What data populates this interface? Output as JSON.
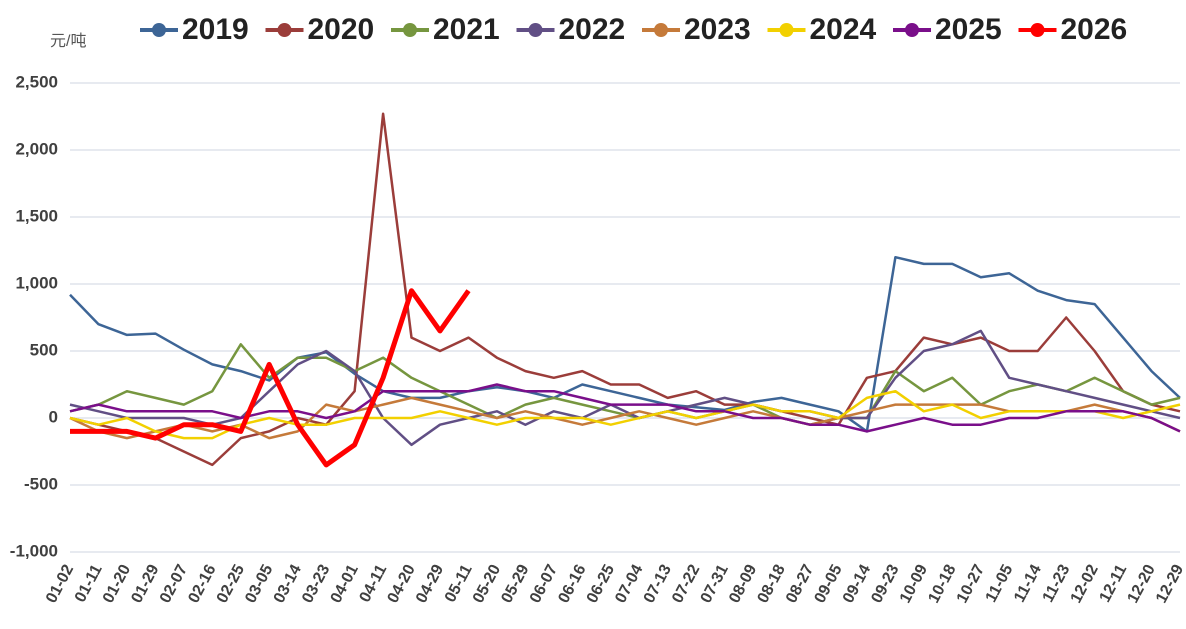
{
  "chart_data": {
    "type": "line",
    "unit": "元/吨",
    "categories": [
      "01-02",
      "01-11",
      "01-20",
      "01-29",
      "02-07",
      "02-16",
      "02-25",
      "03-05",
      "03-14",
      "03-23",
      "04-01",
      "04-11",
      "04-20",
      "04-29",
      "05-11",
      "05-20",
      "05-29",
      "06-07",
      "06-16",
      "06-25",
      "07-04",
      "07-13",
      "07-22",
      "07-31",
      "08-09",
      "08-18",
      "08-27",
      "09-05",
      "09-14",
      "09-23",
      "10-09",
      "10-18",
      "10-27",
      "11-05",
      "11-14",
      "11-23",
      "12-02",
      "12-11",
      "12-20",
      "12-29"
    ],
    "ylim": [
      -1000,
      2500
    ],
    "yticks": [
      {
        "value": -1000,
        "label": "-1,000"
      },
      -500,
      0,
      500,
      {
        "value": 1000,
        "label": "1,000"
      },
      {
        "value": 1500,
        "label": "1,500"
      },
      {
        "value": 2000,
        "label": "2,000"
      },
      {
        "value": 2500,
        "label": "2,500"
      }
    ],
    "grid": true,
    "series": [
      {
        "name": "2019",
        "color": "#3d6596",
        "values": [
          920,
          700,
          620,
          630,
          510,
          400,
          350,
          280,
          450,
          490,
          330,
          200,
          150,
          150,
          200,
          230,
          200,
          150,
          250,
          200,
          150,
          100,
          80,
          60,
          120,
          150,
          100,
          50,
          -100,
          1200,
          1150,
          1150,
          1050,
          1080,
          950,
          880,
          850,
          600,
          350,
          150
        ]
      },
      {
        "name": "2020",
        "color": "#9b3d3a",
        "values": [
          0,
          -50,
          -100,
          -150,
          -250,
          -350,
          -150,
          -100,
          0,
          -50,
          200,
          2270,
          600,
          500,
          600,
          450,
          350,
          300,
          350,
          250,
          250,
          150,
          200,
          100,
          100,
          50,
          0,
          -50,
          300,
          350,
          600,
          550,
          600,
          500,
          500,
          750,
          500,
          200,
          100,
          50
        ]
      },
      {
        "name": "2021",
        "color": "#76963f",
        "values": [
          50,
          100,
          200,
          150,
          100,
          200,
          550,
          300,
          450,
          450,
          350,
          450,
          300,
          200,
          100,
          0,
          100,
          150,
          100,
          50,
          0,
          50,
          0,
          50,
          100,
          0,
          -50,
          0,
          0,
          350,
          200,
          300,
          100,
          200,
          250,
          200,
          300,
          200,
          100,
          150
        ]
      },
      {
        "name": "2022",
        "color": "#614f85",
        "values": [
          100,
          50,
          0,
          0,
          0,
          -50,
          0,
          200,
          400,
          500,
          350,
          0,
          -200,
          -50,
          0,
          50,
          -50,
          50,
          0,
          100,
          0,
          50,
          100,
          150,
          100,
          50,
          50,
          0,
          0,
          300,
          500,
          550,
          650,
          300,
          250,
          200,
          150,
          100,
          50,
          0
        ]
      },
      {
        "name": "2023",
        "color": "#c57a3a",
        "values": [
          0,
          -100,
          -150,
          -100,
          -50,
          -100,
          -50,
          -150,
          -100,
          100,
          50,
          100,
          150,
          100,
          50,
          0,
          50,
          0,
          -50,
          0,
          50,
          0,
          -50,
          0,
          50,
          0,
          -50,
          0,
          50,
          100,
          100,
          100,
          100,
          50,
          50,
          50,
          100,
          50,
          0,
          -100
        ]
      },
      {
        "name": "2024",
        "color": "#f2d000",
        "values": [
          0,
          -50,
          0,
          -100,
          -150,
          -150,
          -50,
          0,
          -50,
          -50,
          0,
          0,
          0,
          50,
          0,
          -50,
          0,
          0,
          0,
          -50,
          0,
          50,
          0,
          50,
          100,
          50,
          50,
          0,
          150,
          200,
          50,
          100,
          0,
          50,
          50,
          50,
          50,
          0,
          50,
          100
        ]
      },
      {
        "name": "2025",
        "color": "#7a0f8a",
        "values": [
          50,
          100,
          50,
          50,
          50,
          50,
          0,
          50,
          50,
          0,
          50,
          200,
          200,
          200,
          200,
          250,
          200,
          200,
          150,
          100,
          100,
          100,
          50,
          50,
          0,
          0,
          -50,
          -50,
          -100,
          -50,
          0,
          -50,
          -50,
          0,
          0,
          50,
          50,
          50,
          0,
          -100
        ]
      },
      {
        "name": "2026",
        "color": "#ff0000",
        "values": [
          -100,
          -100,
          -100,
          -150,
          -50,
          -50,
          -100,
          400,
          -50,
          -350,
          -200,
          300,
          950,
          650,
          950,
          null,
          null,
          null,
          null,
          null,
          null,
          null,
          null,
          null,
          null,
          null,
          null,
          null,
          null,
          null,
          null,
          null,
          null,
          null,
          null,
          null,
          null,
          null,
          null,
          null
        ]
      }
    ]
  }
}
